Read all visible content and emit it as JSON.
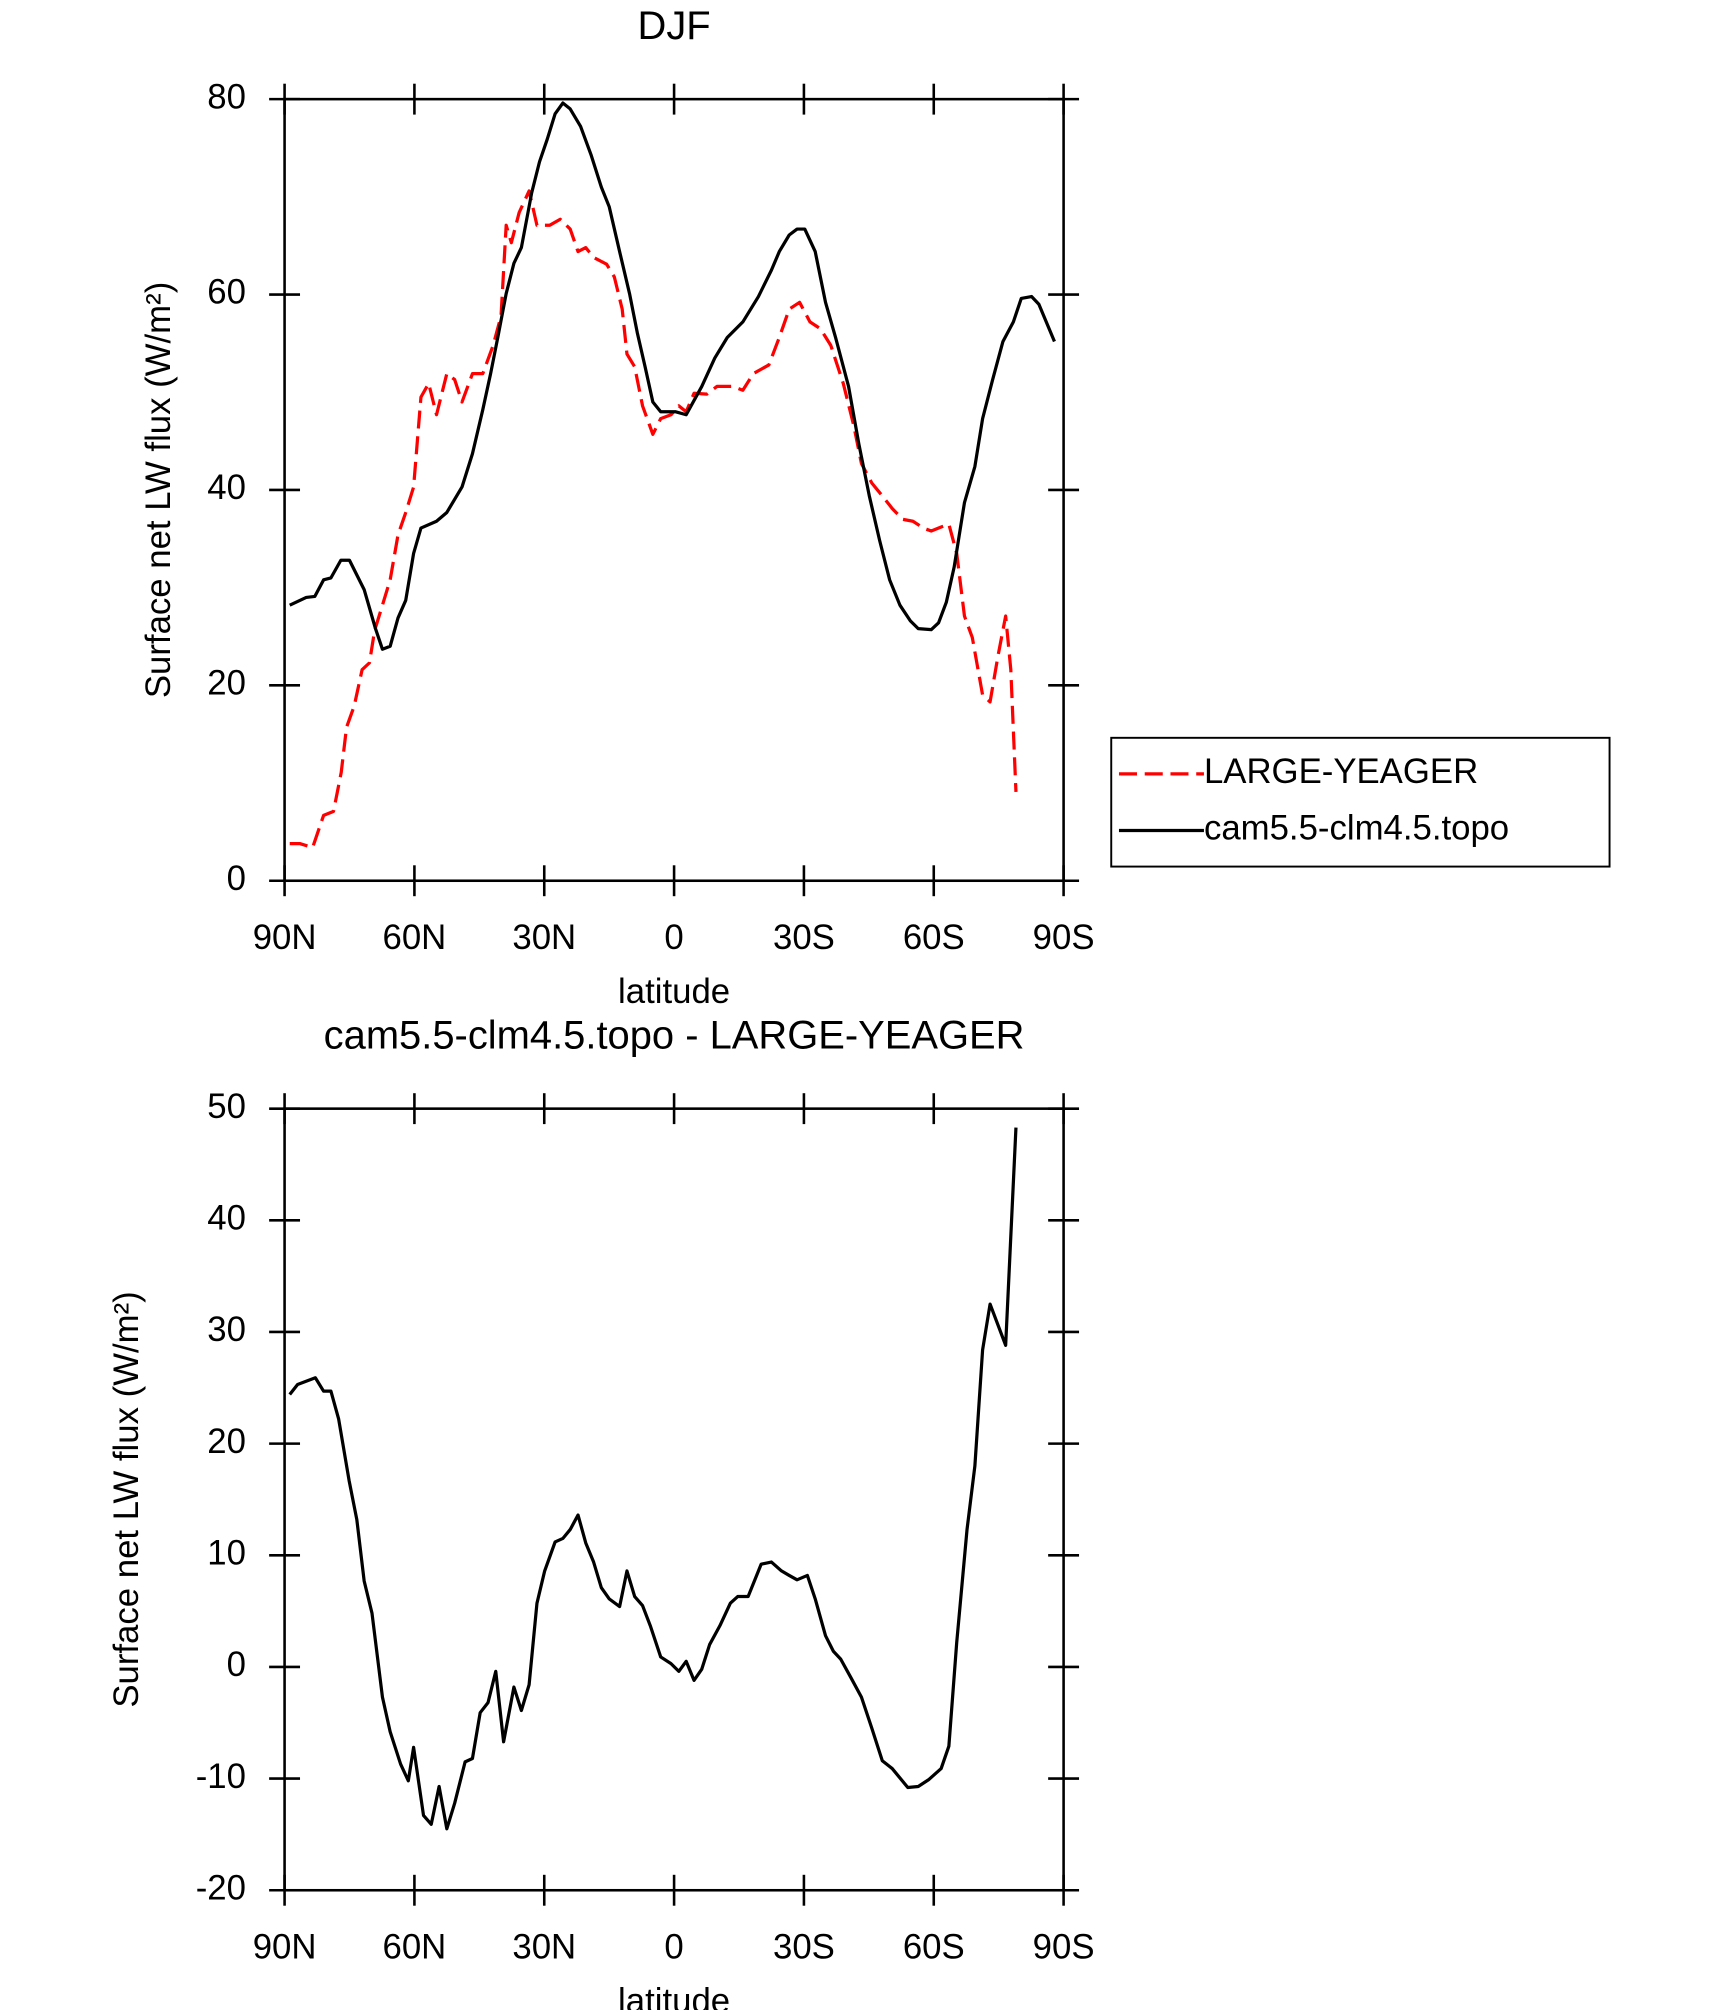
{
  "chart_data": [
    {
      "type": "line",
      "title": "DJF",
      "x_label": "latitude",
      "y_label": "Surface net LW flux (W/m²)",
      "xlim": [
        90,
        -90
      ],
      "xticks": [
        {
          "value": 90,
          "label": "90N"
        },
        {
          "value": 60,
          "label": "60N"
        },
        {
          "value": 30,
          "label": "30N"
        },
        0,
        {
          "value": -30,
          "label": "30S"
        },
        {
          "value": -60,
          "label": "60S"
        },
        {
          "value": -90,
          "label": "90S"
        }
      ],
      "ylim": [
        0,
        80
      ],
      "yticks": [
        0,
        20,
        40,
        60,
        80
      ],
      "legend": "outside right",
      "series": [
        {
          "name": "LARGE-YEAGER",
          "color": "#ff0000",
          "dash": true,
          "x": [
            88.8,
            86.4,
            83.5,
            81,
            78.7,
            76.9,
            75.7,
            73.9,
            72.1,
            70.4,
            69.2,
            67.4,
            65.6,
            63.8,
            62,
            60.2,
            58.5,
            56.7,
            54.9,
            52.5,
            50.7,
            49,
            46.6,
            44.2,
            41.8,
            40,
            38.8,
            37.6,
            35.8,
            33.5,
            31.7,
            28.7,
            26.3,
            24,
            22.2,
            20.4,
            18.6,
            15.6,
            13.8,
            12,
            10.9,
            9.1,
            7.3,
            4.9,
            3.1,
            0.7,
            -1.1,
            -2.8,
            -4.6,
            -7.6,
            -9.9,
            -13.5,
            -15.9,
            -18.3,
            -21.9,
            -24.3,
            -26.6,
            -29,
            -31.4,
            -33.8,
            -36.2,
            -39.1,
            -41.5,
            -43.3,
            -45.7,
            -48.1,
            -50.4,
            -52.8,
            -55.2,
            -57.6,
            -59.4,
            -61.7,
            -63.5,
            -65.3,
            -67.1,
            -68.9,
            -71.3,
            -73,
            -74.8,
            -76.6,
            -77.8,
            -79
          ],
          "values": [
            3.8,
            3.8,
            3.4,
            6.7,
            7.1,
            11.1,
            15.7,
            17.9,
            21.6,
            22.3,
            25.6,
            28.2,
            30.8,
            35.4,
            37.7,
            40.3,
            49.5,
            50.9,
            47.7,
            51.9,
            51.3,
            49,
            51.9,
            51.9,
            54.8,
            57.8,
            67.1,
            65.3,
            68.4,
            70.6,
            67.1,
            67.1,
            67.7,
            66.7,
            64.4,
            64.8,
            63.8,
            63.1,
            61.8,
            58.5,
            53.9,
            52.6,
            48.6,
            45.7,
            47.3,
            47.7,
            48.6,
            48,
            49.9,
            49.8,
            50.6,
            50.6,
            50.2,
            51.9,
            52.8,
            55.6,
            58.5,
            59.2,
            57.2,
            56.5,
            54.8,
            50.9,
            46.6,
            42.7,
            40.7,
            39.4,
            38.1,
            37,
            36.8,
            36.1,
            35.8,
            36.2,
            36.5,
            33.5,
            27.1,
            24.9,
            19,
            18.3,
            22.9,
            27.1,
            21.6,
            9.1
          ]
        },
        {
          "name": "cam5.5-clm4.5.topo",
          "color": "#000000",
          "dash": false,
          "x": [
            88.8,
            85,
            83,
            81,
            79.3,
            77,
            75,
            71.6,
            69,
            67.4,
            65.6,
            63.8,
            62,
            60.2,
            58.5,
            54.9,
            52.5,
            49,
            46.6,
            44.2,
            42.4,
            40.6,
            38.8,
            37,
            35.3,
            32.9,
            31.1,
            29.3,
            27.5,
            25.7,
            24,
            21.6,
            19.2,
            16.8,
            15,
            12.6,
            10.3,
            8.5,
            6.7,
            4.9,
            3.1,
            -0.4,
            -2.8,
            -6.4,
            -9.4,
            -12.3,
            -15.9,
            -19.5,
            -22.5,
            -24.3,
            -26.6,
            -28.4,
            -30.2,
            -32.6,
            -35,
            -37.3,
            -40.3,
            -42.7,
            -45.1,
            -47.5,
            -49.8,
            -52.2,
            -54.6,
            -56.4,
            -59.4,
            -61.1,
            -62.9,
            -64.7,
            -67.1,
            -69.5,
            -71.3,
            -73.6,
            -76,
            -78.4,
            -80.2,
            -82.6,
            -84.3,
            -87.9
          ],
          "values": [
            28.2,
            29,
            29.1,
            30.8,
            31,
            32.8,
            32.8,
            29.8,
            25.8,
            23.7,
            24,
            26.9,
            28.7,
            33.5,
            36.1,
            36.8,
            37.7,
            40.3,
            43.7,
            48.2,
            51.9,
            55.9,
            60.1,
            63.2,
            64.8,
            70.4,
            73.6,
            75.9,
            78.5,
            79.6,
            79,
            77.2,
            74.3,
            71,
            69,
            64.4,
            60.1,
            56.1,
            52.6,
            49,
            48,
            48,
            47.7,
            50.6,
            53.5,
            55.6,
            57.2,
            59.8,
            62.5,
            64.4,
            66.1,
            66.7,
            66.7,
            64.4,
            59.2,
            55.6,
            50.6,
            44.7,
            39.4,
            34.8,
            30.8,
            28.2,
            26.6,
            25.8,
            25.7,
            26.4,
            28.5,
            32.1,
            38.7,
            42.4,
            47.3,
            51.3,
            55.2,
            57.2,
            59.6,
            59.8,
            59,
            55.2
          ]
        }
      ]
    },
    {
      "type": "line",
      "title": "cam5.5-clm4.5.topo - LARGE-YEAGER",
      "x_label": "latitude",
      "y_label": "Surface net LW flux (W/m²)",
      "xlim": [
        90,
        -90
      ],
      "xticks": [
        {
          "value": 90,
          "label": "90N"
        },
        {
          "value": 60,
          "label": "60N"
        },
        {
          "value": 30,
          "label": "30N"
        },
        0,
        {
          "value": -30,
          "label": "30S"
        },
        {
          "value": -60,
          "label": "60S"
        },
        {
          "value": -90,
          "label": "90S"
        }
      ],
      "ylim": [
        -20,
        50
      ],
      "yticks": [
        -20,
        -10,
        0,
        10,
        20,
        30,
        40,
        50
      ],
      "series": [
        {
          "color": "#000000",
          "dash": false,
          "x": [
            88.8,
            87,
            82.9,
            81,
            79.3,
            77.5,
            75.1,
            73.3,
            71.6,
            69.8,
            67.4,
            65.6,
            63.2,
            61.4,
            60.2,
            57.9,
            56.1,
            54.3,
            52.5,
            50.7,
            48.3,
            46.6,
            44.8,
            43,
            41.2,
            39.4,
            37,
            35.3,
            33.5,
            31.7,
            29.9,
            27.5,
            25.7,
            24,
            22.2,
            20.4,
            18.6,
            16.8,
            15,
            12.6,
            10.9,
            9.1,
            7.3,
            5.5,
            3.1,
            0.7,
            -1.1,
            -2.8,
            -4.6,
            -6.4,
            -8.2,
            -10.6,
            -13,
            -14.7,
            -17.1,
            -20.1,
            -22.5,
            -24.8,
            -26.6,
            -28.4,
            -30.8,
            -32.6,
            -35,
            -36.8,
            -38.5,
            -40.9,
            -43.3,
            -45.7,
            -48.1,
            -50.4,
            -54,
            -56.4,
            -58.8,
            -61.7,
            -63.5,
            -65.3,
            -67.7,
            -69.5,
            -71.3,
            -73,
            -76.6,
            -79
          ],
          "values": [
            24.4,
            25.3,
            25.9,
            24.7,
            24.7,
            22.2,
            16.7,
            13.2,
            7.7,
            4.8,
            -2.7,
            -5.8,
            -8.7,
            -10.2,
            -7.2,
            -13.3,
            -14.1,
            -10.7,
            -14.5,
            -12.2,
            -8.5,
            -8.2,
            -4.1,
            -3.2,
            -0.4,
            -6.7,
            -1.8,
            -3.9,
            -1.6,
            5.7,
            8.6,
            11.2,
            11.5,
            12.3,
            13.6,
            11.1,
            9.4,
            7.1,
            6.1,
            5.4,
            8.6,
            6.3,
            5.5,
            3.7,
            0.9,
            0.3,
            -0.4,
            0.5,
            -1.2,
            -0.2,
            2,
            3.7,
            5.7,
            6.3,
            6.3,
            9.2,
            9.4,
            8.6,
            8.2,
            7.8,
            8.2,
            6.1,
            2.8,
            1.4,
            0.7,
            -1,
            -2.7,
            -5.5,
            -8.4,
            -9.1,
            -10.8,
            -10.7,
            -10.1,
            -9.1,
            -7.1,
            2.2,
            12.3,
            18,
            28.4,
            32.5,
            28.8,
            48.3
          ]
        }
      ]
    }
  ]
}
